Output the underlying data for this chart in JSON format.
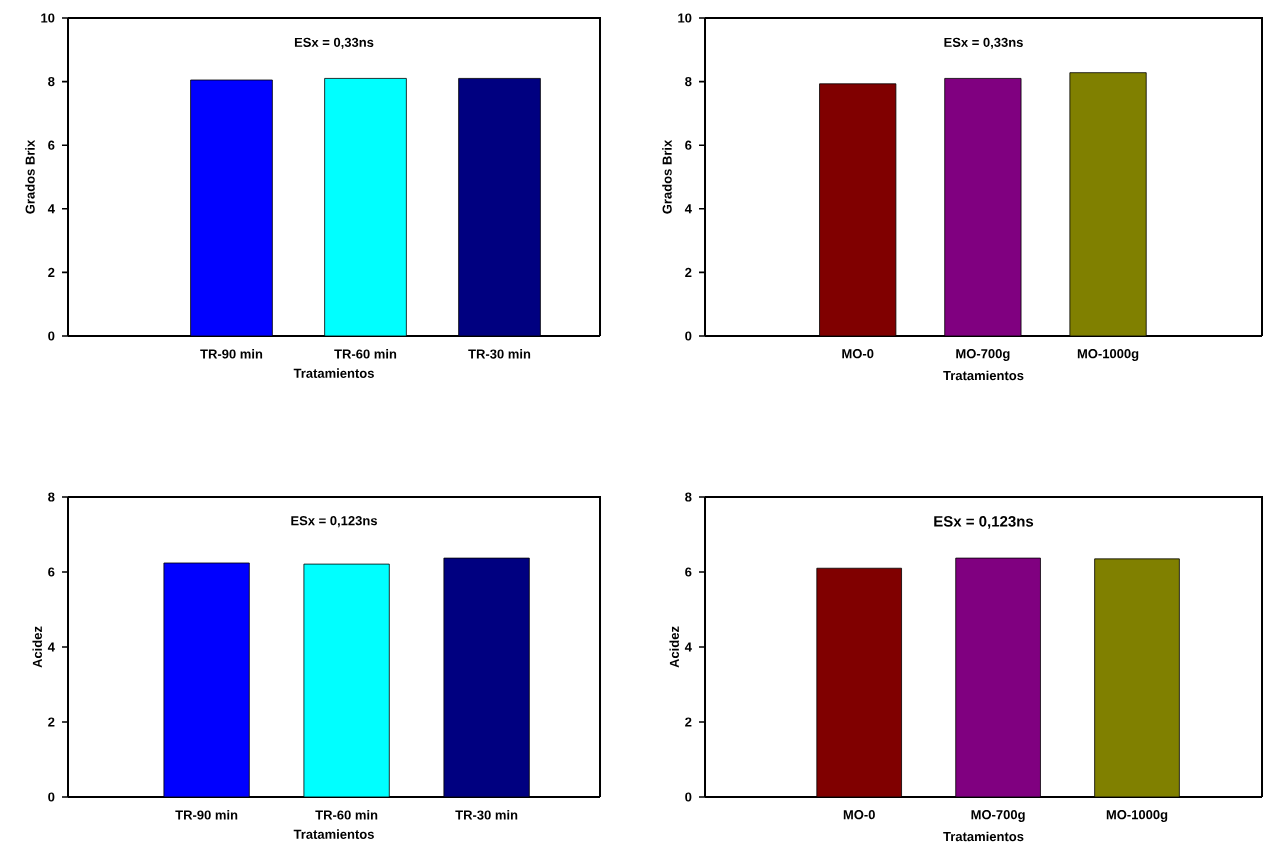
{
  "chart_data": [
    {
      "type": "bar",
      "categories": [
        "TR-90 min",
        "TR-60 min",
        "TR-30 min"
      ],
      "values": [
        8.05,
        8.1,
        8.1
      ],
      "colors": [
        "#0000ff",
        "#00ffff",
        "#000080"
      ],
      "xlabel": "Tratamientos",
      "ylabel": "Grados Brix",
      "ylim": [
        0,
        10
      ],
      "yticks": [
        0,
        2,
        4,
        6,
        8,
        10
      ],
      "annotations": [
        "ESx =  0,33ns"
      ]
    },
    {
      "type": "bar",
      "categories": [
        "MO-0",
        "MO-700g",
        "MO-1000g"
      ],
      "values": [
        7.93,
        8.1,
        8.28
      ],
      "colors": [
        "#800000",
        "#800080",
        "#808000"
      ],
      "xlabel": "Tratamientos",
      "ylabel": "Grados Brix",
      "ylim": [
        0,
        10
      ],
      "yticks": [
        0,
        2,
        4,
        6,
        8,
        10
      ],
      "annotations": [
        "ESx = 0,33ns"
      ]
    },
    {
      "type": "bar",
      "categories": [
        "TR-90 min",
        "TR-60 min",
        "TR-30 min"
      ],
      "values": [
        6.24,
        6.21,
        6.37
      ],
      "colors": [
        "#0000ff",
        "#00ffff",
        "#000080"
      ],
      "xlabel": "Tratamientos",
      "ylabel": "Acidez",
      "ylim": [
        0,
        8
      ],
      "yticks": [
        0,
        2,
        4,
        6,
        8
      ],
      "annotations": [
        "ESx =  0,123ns"
      ]
    },
    {
      "type": "bar",
      "categories": [
        "MO-0",
        "MO-700g",
        "MO-1000g"
      ],
      "values": [
        6.1,
        6.37,
        6.35
      ],
      "colors": [
        "#800000",
        "#800080",
        "#808000"
      ],
      "xlabel": "Tratamientos",
      "ylabel": "Acidez",
      "ylim": [
        0,
        8
      ],
      "yticks": [
        0,
        2,
        4,
        6,
        8
      ],
      "annotations": [
        "ESx = 0,123ns"
      ]
    }
  ]
}
